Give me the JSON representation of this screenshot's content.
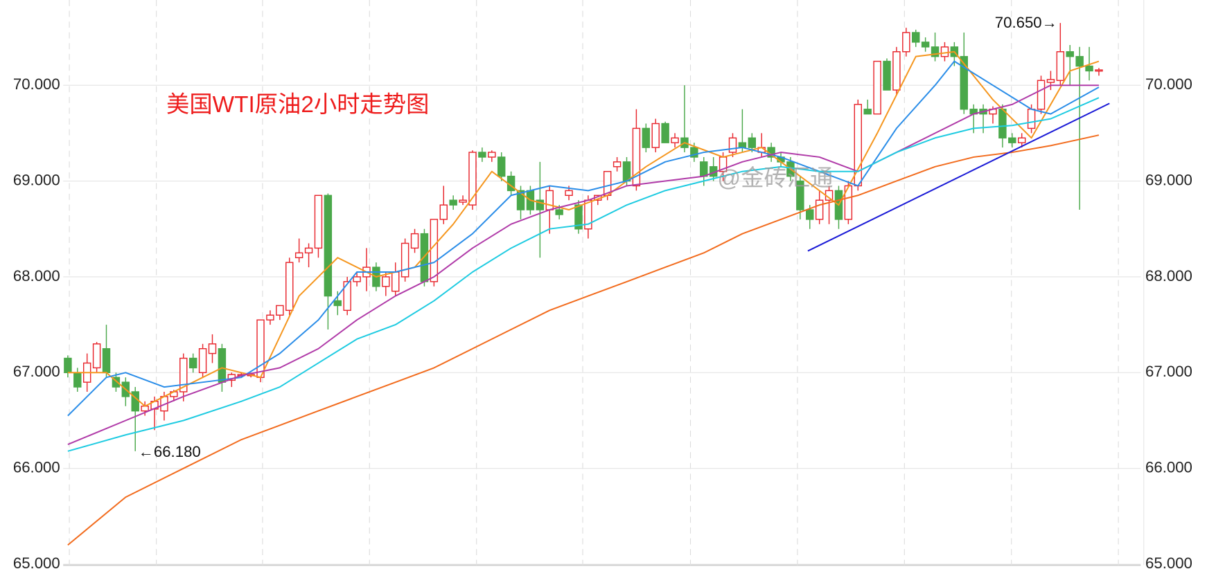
{
  "chart_data": {
    "type": "candlestick",
    "title": "美国WTI原油2小时走势图",
    "watermark": "@金砖汇通",
    "up_color": "#e8262d",
    "down_color": "#4aa84a",
    "title_color": "#ee1c1c",
    "ylim": [
      64.99,
      70.89
    ],
    "yticks": [
      {
        "value": 65,
        "label": "65.000"
      },
      {
        "value": 66,
        "label": "66.000"
      },
      {
        "value": 67,
        "label": "67.000"
      },
      {
        "value": 68,
        "label": "68.000"
      },
      {
        "value": 69,
        "label": "69.000"
      },
      {
        "value": 70,
        "label": "70.000"
      }
    ],
    "grid": true,
    "annotations": [
      "←66.180",
      "70.650→"
    ],
    "candles": {
      "open": [
        67.15,
        67.0,
        66.9,
        67.05,
        67.25,
        66.95,
        66.9,
        66.8,
        66.6,
        66.62,
        66.6,
        66.75,
        66.8,
        67.15,
        67.0,
        67.2,
        67.25,
        66.92,
        66.97,
        66.97,
        66.95,
        67.55,
        67.6,
        67.65,
        68.2,
        68.25,
        68.3,
        68.85,
        67.75,
        67.65,
        67.95,
        68.0,
        68.1,
        67.9,
        67.85,
        68.0,
        68.3,
        68.45,
        67.95,
        68.6,
        68.8,
        68.78,
        68.75,
        69.3,
        69.25,
        69.25,
        69.05,
        68.9,
        68.9,
        68.8,
        68.7,
        68.7,
        68.85,
        68.75,
        68.5,
        68.8,
        68.85,
        69.15,
        69.2,
        68.95,
        69.55,
        69.35,
        69.6,
        69.4,
        69.45,
        69.35,
        69.2,
        69.15,
        69.1,
        69.3,
        69.4,
        69.45,
        69.3,
        69.35,
        69.25,
        69.2,
        69.0,
        68.7,
        68.6,
        68.8,
        68.9,
        68.6,
        68.95,
        69.75,
        69.7,
        70.25,
        69.95,
        70.35,
        70.55,
        70.45,
        70.4,
        70.3,
        70.4,
        70.3,
        69.75,
        69.75,
        69.7,
        69.75,
        69.45,
        69.4,
        69.55,
        69.75,
        70.03,
        70.05,
        70.35,
        70.3,
        70.2,
        70.15
      ],
      "high": [
        67.18,
        67.05,
        67.2,
        67.32,
        67.5,
        67.0,
        66.95,
        66.85,
        66.7,
        66.75,
        66.8,
        66.82,
        67.2,
        67.2,
        67.3,
        67.4,
        67.3,
        67.0,
        67.0,
        67.0,
        67.55,
        67.65,
        67.7,
        68.2,
        68.4,
        68.35,
        68.85,
        68.87,
        67.85,
        68.0,
        68.05,
        68.3,
        68.15,
        68.05,
        68.15,
        68.4,
        68.5,
        68.5,
        68.6,
        68.95,
        68.85,
        68.85,
        69.32,
        69.35,
        69.32,
        69.3,
        69.1,
        68.95,
        68.95,
        69.2,
        68.95,
        68.75,
        68.95,
        68.8,
        68.85,
        68.85,
        69.1,
        69.25,
        69.25,
        69.75,
        69.6,
        69.65,
        69.62,
        69.5,
        70.0,
        69.4,
        69.25,
        69.25,
        69.3,
        69.5,
        69.75,
        69.5,
        69.5,
        69.4,
        69.3,
        69.25,
        69.05,
        68.75,
        68.9,
        68.95,
        68.95,
        69.0,
        69.85,
        69.85,
        70.25,
        70.28,
        70.4,
        70.6,
        70.58,
        70.5,
        70.55,
        70.45,
        70.45,
        70.55,
        69.8,
        69.8,
        69.78,
        69.8,
        69.5,
        69.5,
        69.8,
        70.1,
        70.15,
        70.65,
        70.42,
        70.4,
        70.4,
        70.18
      ],
      "low": [
        66.95,
        66.8,
        66.8,
        67.0,
        66.95,
        66.8,
        66.65,
        66.18,
        66.55,
        66.4,
        66.5,
        66.7,
        66.7,
        67.0,
        66.95,
        67.1,
        66.8,
        66.85,
        66.95,
        66.95,
        66.9,
        67.5,
        67.55,
        67.6,
        68.15,
        68.1,
        68.2,
        67.45,
        67.6,
        67.6,
        67.9,
        67.85,
        67.85,
        67.8,
        67.8,
        67.95,
        68.25,
        67.9,
        67.9,
        68.55,
        68.7,
        68.75,
        68.7,
        69.2,
        69.2,
        69.0,
        68.85,
        68.6,
        68.65,
        68.2,
        68.45,
        68.6,
        68.8,
        68.45,
        68.4,
        68.75,
        68.8,
        69.1,
        68.95,
        68.9,
        69.3,
        69.3,
        69.4,
        69.35,
        69.3,
        69.2,
        68.95,
        69.0,
        69.0,
        69.25,
        69.3,
        69.3,
        69.25,
        69.2,
        69.15,
        69.0,
        68.6,
        68.5,
        68.55,
        68.55,
        68.5,
        68.55,
        68.9,
        69.7,
        69.7,
        69.95,
        69.9,
        70.3,
        70.4,
        70.35,
        70.25,
        70.25,
        70.2,
        69.7,
        69.5,
        69.5,
        69.6,
        69.35,
        69.35,
        69.35,
        69.5,
        69.7,
        69.95,
        70.0,
        70.0,
        68.7,
        70.05,
        70.1
      ],
      "close": [
        67.0,
        66.85,
        67.1,
        67.3,
        67.0,
        66.85,
        66.75,
        66.6,
        66.65,
        66.7,
        66.75,
        66.8,
        67.15,
        67.05,
        67.25,
        67.3,
        66.9,
        66.98,
        66.98,
        66.98,
        67.55,
        67.6,
        67.7,
        68.15,
        68.25,
        68.3,
        68.85,
        67.8,
        67.7,
        67.95,
        68.0,
        68.1,
        67.9,
        68.0,
        68.05,
        68.35,
        68.45,
        67.95,
        68.6,
        68.75,
        68.75,
        68.8,
        69.3,
        69.25,
        69.3,
        69.05,
        68.9,
        68.7,
        68.7,
        68.7,
        68.9,
        68.65,
        68.9,
        68.5,
        68.8,
        68.85,
        69.1,
        69.2,
        69.0,
        69.55,
        69.35,
        69.6,
        69.4,
        69.45,
        69.35,
        69.25,
        69.05,
        69.05,
        69.25,
        69.45,
        69.35,
        69.35,
        69.35,
        69.25,
        69.2,
        69.05,
        68.7,
        68.6,
        68.8,
        68.9,
        68.6,
        68.95,
        69.8,
        69.7,
        70.25,
        69.95,
        70.35,
        70.55,
        70.45,
        70.4,
        70.3,
        70.4,
        70.3,
        69.75,
        69.7,
        69.7,
        69.75,
        69.45,
        69.4,
        69.45,
        69.75,
        70.05,
        70.06,
        70.35,
        70.3,
        70.2,
        70.15,
        70.16
      ]
    },
    "series": [
      {
        "color": "#f5961e",
        "x": [
          0,
          4,
          8,
          12,
          16,
          20,
          24,
          28,
          32,
          36,
          40,
          44,
          48,
          52,
          56,
          60,
          64,
          68,
          72,
          76,
          80,
          84,
          88,
          92,
          96,
          100,
          104,
          107
        ],
        "values": [
          67.0,
          67.0,
          66.65,
          66.85,
          67.05,
          66.95,
          67.8,
          68.2,
          68.0,
          68.1,
          68.55,
          69.1,
          68.8,
          68.7,
          68.85,
          69.15,
          69.4,
          69.25,
          69.35,
          69.05,
          68.75,
          69.5,
          70.3,
          70.35,
          69.85,
          69.45,
          70.15,
          70.25
        ]
      },
      {
        "color": "#2a8de8",
        "x": [
          0,
          4,
          6,
          10,
          14,
          18,
          22,
          26,
          30,
          34,
          38,
          42,
          46,
          50,
          54,
          58,
          62,
          66,
          70,
          74,
          78,
          82,
          86,
          90,
          92,
          96,
          100,
          102,
          107
        ],
        "values": [
          66.55,
          66.95,
          67.0,
          66.85,
          66.9,
          66.95,
          67.2,
          67.55,
          68.05,
          68.05,
          68.15,
          68.45,
          68.85,
          68.95,
          68.9,
          69.0,
          69.2,
          69.3,
          69.35,
          69.25,
          69.1,
          68.95,
          69.55,
          70.0,
          70.25,
          70.0,
          69.75,
          69.7,
          69.98
        ]
      },
      {
        "color": "#b03aa8",
        "x": [
          0,
          6,
          12,
          18,
          22,
          26,
          30,
          34,
          38,
          42,
          46,
          50,
          54,
          58,
          62,
          66,
          70,
          74,
          78,
          82,
          86,
          90,
          94,
          98,
          102,
          107
        ],
        "values": [
          66.25,
          66.5,
          66.75,
          66.97,
          67.05,
          67.25,
          67.55,
          67.8,
          68.0,
          68.3,
          68.55,
          68.7,
          68.8,
          68.95,
          69.0,
          69.05,
          69.2,
          69.3,
          69.25,
          69.1,
          69.3,
          69.5,
          69.7,
          69.8,
          70.0,
          70.0
        ]
      },
      {
        "color": "#1ecbe1",
        "x": [
          0,
          6,
          12,
          18,
          22,
          26,
          30,
          34,
          38,
          42,
          46,
          50,
          54,
          58,
          62,
          66,
          70,
          74,
          78,
          82,
          86,
          90,
          94,
          98,
          102,
          107
        ],
        "values": [
          66.18,
          66.35,
          66.5,
          66.7,
          66.85,
          67.1,
          67.35,
          67.5,
          67.75,
          68.05,
          68.3,
          68.5,
          68.55,
          68.75,
          68.9,
          69.0,
          69.1,
          69.15,
          69.1,
          69.1,
          69.3,
          69.45,
          69.55,
          69.58,
          69.65,
          69.87
        ]
      },
      {
        "color": "#f26b1d",
        "x": [
          0,
          6,
          12,
          18,
          22,
          26,
          30,
          34,
          38,
          42,
          46,
          50,
          54,
          58,
          62,
          66,
          70,
          74,
          78,
          82,
          86,
          90,
          94,
          98,
          102,
          107
        ],
        "values": [
          65.2,
          65.7,
          66.0,
          66.3,
          66.45,
          66.6,
          66.75,
          66.9,
          67.05,
          67.25,
          67.45,
          67.65,
          67.8,
          67.95,
          68.1,
          68.25,
          68.45,
          68.6,
          68.75,
          68.85,
          69.0,
          69.15,
          69.25,
          69.3,
          69.37,
          69.48
        ]
      },
      {
        "color": "#1a1ad6",
        "x": [
          76.8,
          108.1
        ],
        "values": [
          68.27,
          69.81
        ]
      }
    ]
  }
}
